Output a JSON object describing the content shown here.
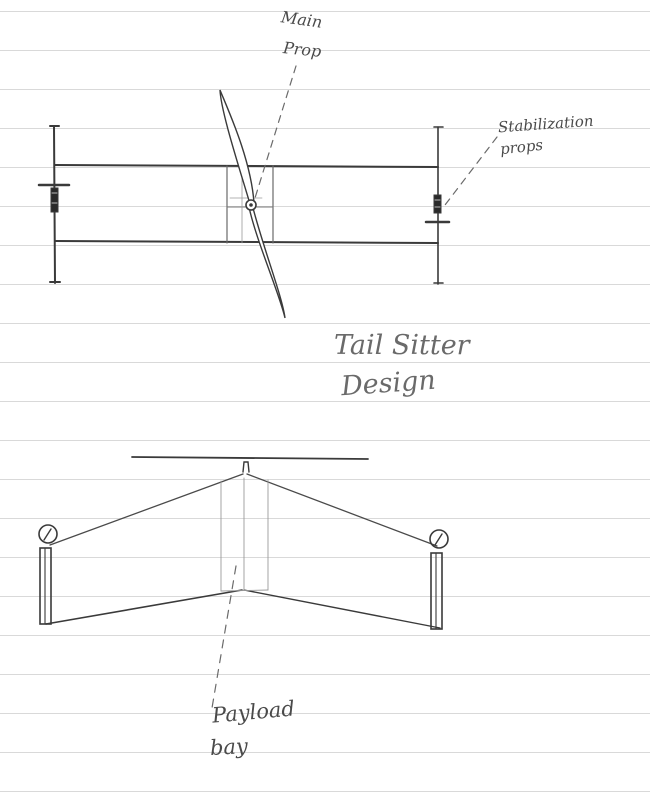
{
  "labels": {
    "main_prop_line1": "Main",
    "main_prop_line2": "Prop",
    "stabilization_line1": "Stabilization",
    "stabilization_line2": "props",
    "title_line1": "Tail Sitter",
    "title_line2": "Design",
    "payload_line1": "Payload",
    "payload_line2": "bay"
  },
  "colors": {
    "paper": "#ffffff",
    "ruled_line": "#d9d9d9",
    "pencil": "#3a3a3a",
    "faint_pencil": "#8a8a8a"
  }
}
